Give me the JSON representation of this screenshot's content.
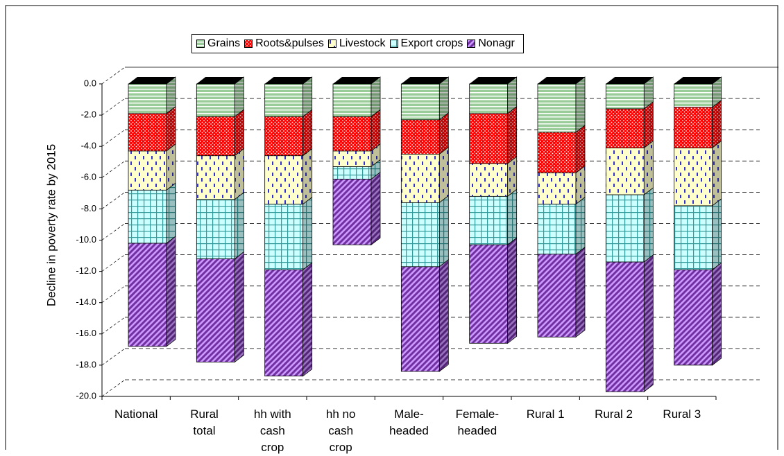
{
  "chart_data": {
    "type": "bar3d_stacked",
    "y_label": "Decline in poverty rate by 2015",
    "categories": [
      "National",
      "Rural total",
      "hh with cash crop",
      "hh no cash crop",
      "Male-headed",
      "Female-headed",
      "Rural 1",
      "Rural 2",
      "Rural 3"
    ],
    "series": [
      {
        "name": "Grains",
        "color": "#99cc99",
        "values": [
          -1.9,
          -2.1,
          -2.1,
          -2.1,
          -2.3,
          -1.9,
          -3.1,
          -1.6,
          -1.5
        ]
      },
      {
        "name": "Roots&pulses",
        "color": "#ff0000",
        "values": [
          -2.4,
          -2.5,
          -2.5,
          -2.2,
          -2.2,
          -3.2,
          -2.6,
          -2.5,
          -2.6
        ]
      },
      {
        "name": "Livestock",
        "color": "#ffffcc",
        "values": [
          -2.5,
          -2.8,
          -3.1,
          -1.0,
          -3.1,
          -2.1,
          -2.0,
          -3.0,
          -3.7
        ]
      },
      {
        "name": "Export crops",
        "color": "#ccffff",
        "values": [
          -3.4,
          -3.8,
          -4.2,
          -0.8,
          -4.1,
          -3.1,
          -3.2,
          -4.3,
          -4.1
        ]
      },
      {
        "name": "Nonagr",
        "color": "#cc99ff",
        "values": [
          -6.6,
          -6.6,
          -6.8,
          -4.2,
          -6.7,
          -6.3,
          -5.3,
          -8.3,
          -6.1
        ]
      }
    ],
    "ylim": [
      -20,
      0
    ],
    "yticks": [
      {
        "value": 0,
        "label": "0.0"
      },
      {
        "value": -2,
        "label": "-2.0"
      },
      {
        "value": -4,
        "label": "-4.0"
      },
      {
        "value": -6,
        "label": "-6.0"
      },
      {
        "value": -8,
        "label": "-8.0"
      },
      {
        "value": -10,
        "label": "-10.0"
      },
      {
        "value": -12,
        "label": "-12.0"
      },
      {
        "value": -14,
        "label": "-14.0"
      },
      {
        "value": -16,
        "label": "-16.0"
      },
      {
        "value": -18,
        "label": "-18.0"
      },
      {
        "value": -20,
        "label": "-20.0"
      }
    ],
    "grid": true
  }
}
